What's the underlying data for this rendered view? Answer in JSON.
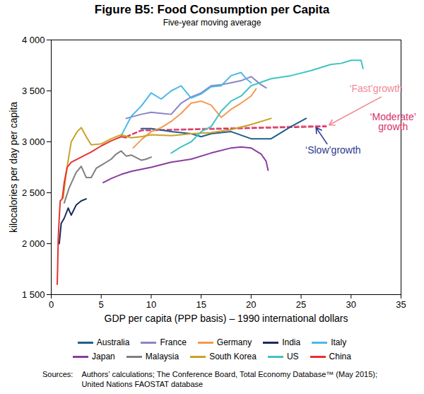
{
  "chart_data": {
    "type": "line",
    "title": "Figure B5: Food Consumption per Capita",
    "subtitle": "Five-year moving average",
    "x_label": "GDP per capita (PPP basis) – 1990 international dollars",
    "y_label": "kilocalories per day per capita",
    "xlim": [
      0,
      35
    ],
    "xticks": [
      0,
      5,
      10,
      15,
      20,
      25,
      30,
      35
    ],
    "ylim": [
      1500,
      4000
    ],
    "yticks": [
      {
        "value": 1500,
        "label": "1 500"
      },
      {
        "value": 2000,
        "label": "2 000"
      },
      {
        "value": 2500,
        "label": "2 500"
      },
      {
        "value": 3000,
        "label": "3 000"
      },
      {
        "value": 3500,
        "label": "3 500"
      },
      {
        "value": 4000,
        "label": "4 000"
      }
    ],
    "grid": false,
    "legend": "bottom",
    "series": [
      {
        "name": "Australia",
        "color": "#1f5f8b",
        "x": [
          9,
          10,
          12,
          14,
          15,
          16,
          18,
          20,
          22,
          24,
          25.5
        ],
        "values": [
          3130,
          3130,
          3100,
          3080,
          3050,
          3080,
          3100,
          3030,
          3030,
          3150,
          3230
        ]
      },
      {
        "name": "France",
        "color": "#8a86c8",
        "x": [
          7.5,
          9,
          10,
          11,
          12,
          13,
          14,
          15,
          16,
          17,
          18,
          19,
          20,
          21,
          21.5
        ],
        "values": [
          3230,
          3270,
          3290,
          3280,
          3270,
          3380,
          3440,
          3480,
          3550,
          3560,
          3580,
          3600,
          3640,
          3560,
          3530
        ]
      },
      {
        "name": "Germany",
        "color": "#f39a4f",
        "x": [
          8.2,
          9,
          10,
          11,
          12,
          13,
          14,
          15,
          16,
          17,
          17.5,
          18,
          19,
          20,
          20.5
        ],
        "values": [
          2940,
          3020,
          3100,
          3140,
          3200,
          3280,
          3380,
          3400,
          3360,
          3240,
          3280,
          3320,
          3380,
          3450,
          3520
        ]
      },
      {
        "name": "India",
        "color": "#1b2a5e",
        "x": [
          0.8,
          1.0,
          1.3,
          1.7,
          2,
          2.5,
          3,
          3.5
        ],
        "values": [
          2000,
          2200,
          2250,
          2350,
          2280,
          2380,
          2420,
          2440
        ]
      },
      {
        "name": "Italy",
        "color": "#4db8e8",
        "x": [
          7,
          8,
          9,
          10,
          11,
          12,
          13,
          14,
          15,
          16,
          17,
          18,
          19,
          19.5,
          20
        ],
        "values": [
          3060,
          3250,
          3350,
          3480,
          3420,
          3500,
          3550,
          3430,
          3470,
          3540,
          3550,
          3650,
          3680,
          3620,
          3580
        ]
      },
      {
        "name": "Japan",
        "color": "#8b3d9e",
        "x": [
          5.2,
          6,
          7,
          8,
          10,
          12,
          14,
          16,
          18,
          19,
          20,
          21,
          21.5,
          21.7
        ],
        "values": [
          2600,
          2640,
          2680,
          2710,
          2750,
          2800,
          2830,
          2890,
          2940,
          2950,
          2940,
          2880,
          2810,
          2720
        ]
      },
      {
        "name": "Malaysia",
        "color": "#7f7f7f",
        "x": [
          1.3,
          1.8,
          2.5,
          3,
          3.5,
          4,
          4.5,
          5,
          6,
          6.5,
          7,
          7.5,
          8,
          9,
          9.5,
          10
        ],
        "values": [
          2400,
          2550,
          2700,
          2760,
          2650,
          2650,
          2740,
          2770,
          2830,
          2880,
          2910,
          2860,
          2870,
          2820,
          2830,
          2850
        ]
      },
      {
        "name": "South Korea",
        "color": "#c9a227",
        "x": [
          1.2,
          1.5,
          2,
          2.6,
          3,
          3.5,
          4,
          5,
          6,
          7,
          8,
          9,
          10,
          12,
          14,
          16,
          18,
          20,
          22
        ],
        "values": [
          2450,
          2700,
          3000,
          3100,
          3140,
          3050,
          2970,
          2980,
          3030,
          3070,
          3040,
          3050,
          3070,
          3060,
          3080,
          3090,
          3120,
          3170,
          3230
        ]
      },
      {
        "name": "US",
        "color": "#40c4c4",
        "x": [
          12,
          13,
          14,
          15,
          16,
          17,
          18,
          19,
          20,
          22,
          24,
          26,
          28,
          29,
          30,
          31,
          31.2
        ],
        "values": [
          2890,
          2950,
          3000,
          3100,
          3150,
          3300,
          3400,
          3450,
          3550,
          3620,
          3650,
          3700,
          3760,
          3770,
          3800,
          3800,
          3720
        ]
      },
      {
        "name": "China",
        "color": "#e8312f",
        "x": [
          0.6,
          0.65,
          0.7,
          0.8,
          0.9,
          1.1,
          1.3,
          1.6,
          2,
          3,
          4,
          5,
          6,
          7,
          7.5
        ],
        "values": [
          1600,
          1800,
          2050,
          2250,
          2420,
          2440,
          2600,
          2750,
          2800,
          2850,
          2900,
          2960,
          3010,
          3050,
          3040
        ]
      }
    ],
    "annotations": [
      {
        "text": "‘Fast’growth",
        "color": "#f08a94",
        "x": 32.5,
        "y": 3520,
        "line": {
          "x": [
            7.5,
            9,
            27.5
          ],
          "values": [
            3050,
            3115,
            3160
          ],
          "line_style": "dashed"
        },
        "arrow": {
          "x": [
            33.0,
            27.8
          ],
          "y": [
            3440,
            3165
          ]
        }
      },
      {
        "text": "‘Moderate’\ngrowth",
        "color": "#d6336c",
        "x": 34.2,
        "y": 3195,
        "line": {
          "x": [
            7.5,
            9,
            27.5
          ],
          "values": [
            3050,
            3110,
            3150
          ],
          "line_style": "dashed"
        }
      },
      {
        "text": "‘Slow’growth",
        "color": "#2b3990",
        "x": 28.2,
        "y": 2920,
        "arrow": {
          "x": [
            27.6,
            26.5
          ],
          "y": [
            2980,
            3140
          ]
        }
      }
    ],
    "sources": [
      "Sources:",
      "Authors’ calculations; The Conference Board, Total Economy Database™ (May 2015);",
      "United Nations FAOSTAT database"
    ]
  }
}
